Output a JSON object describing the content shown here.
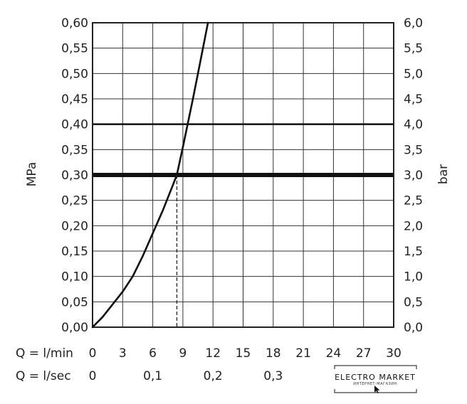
{
  "chart_data": {
    "type": "line",
    "ylabel_left": "MPa",
    "ylabel_right": "bar",
    "ylim": [
      0,
      0.6
    ],
    "xlim": [
      0,
      30
    ],
    "left_ticks": [
      "0,00",
      "0,05",
      "0,10",
      "0,15",
      "0,20",
      "0,25",
      "0,30",
      "0,35",
      "0,40",
      "0,45",
      "0,50",
      "0,55",
      "0,60"
    ],
    "right_ticks": [
      "0,0",
      "0,5",
      "1,0",
      "1,5",
      "2,0",
      "2,5",
      "3,0",
      "3,5",
      "4,0",
      "4,5",
      "5,0",
      "5,5",
      "6,0"
    ],
    "x_row1": {
      "label": "Q = l/min",
      "ticks": [
        {
          "x": 0,
          "text": "0"
        },
        {
          "x": 3,
          "text": "3"
        },
        {
          "x": 6,
          "text": "6"
        },
        {
          "x": 9,
          "text": "9"
        },
        {
          "x": 12,
          "text": "12"
        },
        {
          "x": 15,
          "text": "15"
        },
        {
          "x": 18,
          "text": "18"
        },
        {
          "x": 21,
          "text": "21"
        },
        {
          "x": 24,
          "text": "24"
        },
        {
          "x": 27,
          "text": "27"
        },
        {
          "x": 30,
          "text": "30"
        }
      ]
    },
    "x_row2": {
      "label": "Q = l/sec",
      "ticks": [
        {
          "x": 0,
          "text": "0"
        },
        {
          "x": 6,
          "text": "0,1"
        },
        {
          "x": 12,
          "text": "0,2"
        },
        {
          "x": 18,
          "text": "0,3"
        }
      ]
    },
    "grid": true,
    "emphasized_lines": [
      {
        "y": 0.3,
        "weight": "heavy"
      },
      {
        "y": 0.4,
        "weight": "medium"
      }
    ],
    "series": [
      {
        "x": [
          0,
          1,
          2,
          3,
          4,
          5,
          6,
          7,
          8,
          8.4,
          9,
          10,
          11,
          11.5
        ],
        "y": [
          0,
          0.02,
          0.045,
          0.07,
          0.1,
          0.14,
          0.185,
          0.23,
          0.28,
          0.3,
          0.355,
          0.45,
          0.55,
          0.6
        ]
      }
    ],
    "annotations": [
      {
        "type": "dashed-drop",
        "x": 8.4,
        "from_y": 0.3,
        "to_y": 0
      }
    ]
  },
  "watermark": {
    "text": "ELECTRO MARKET",
    "subtext": "ИНТЕРНЕТ-МАГАЗИН"
  }
}
